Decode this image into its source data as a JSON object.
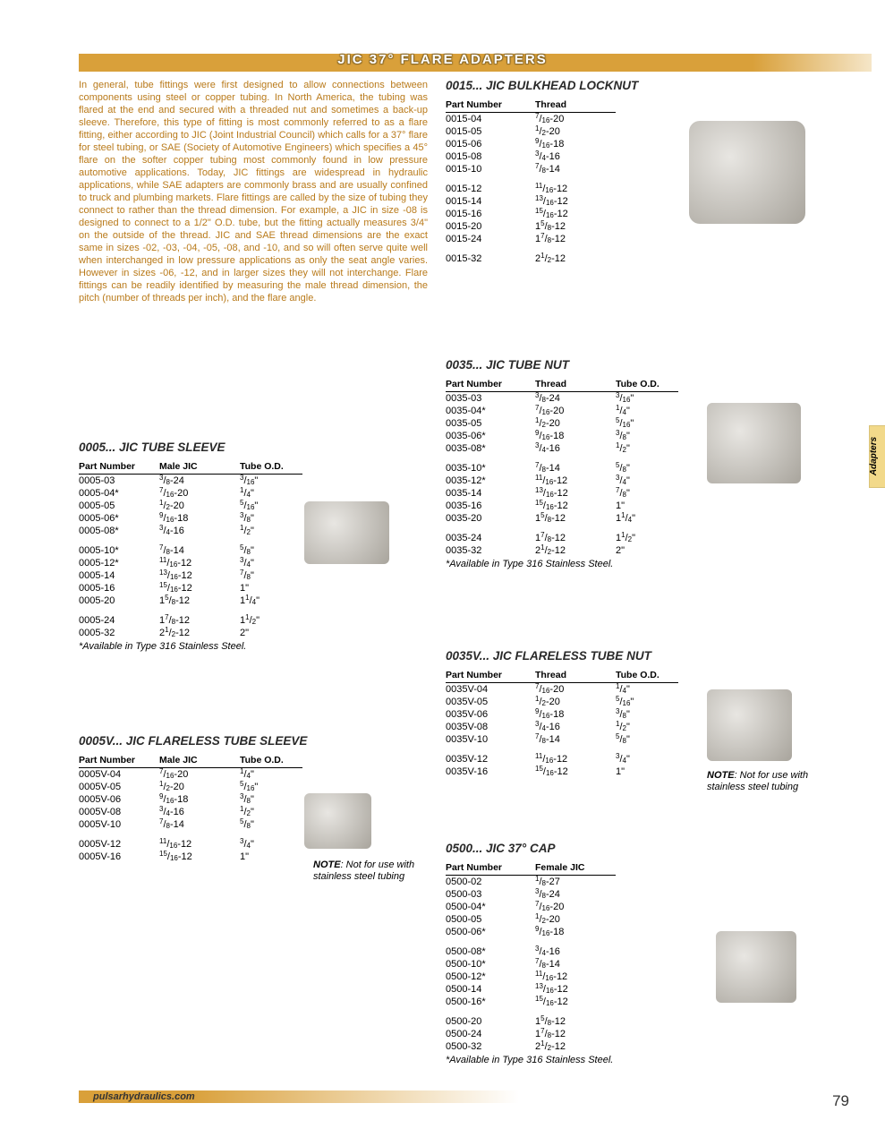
{
  "header": {
    "title": "JIC 37° FLARE ADAPTERS"
  },
  "sideTab": "Adapters",
  "intro": "In general, tube fittings were first designed to allow connections between components using steel or copper tubing. In North America, the tubing was flared at the end and secured with a threaded nut and sometimes a back-up sleeve. Therefore, this type of fitting is most commonly referred to as a flare fitting, either according to JIC (Joint Industrial Council) which calls for a 37° flare for steel tubing, or SAE (Society of Automotive Engineers) which specifies a 45° flare on the softer copper tubing most commonly found in low pressure automotive applications. Today, JIC fittings are widespread in hydraulic applications, while SAE adapters are commonly brass and are usually confined to truck and plumbing markets. Flare fittings are called by the size of tubing they connect to rather than the thread dimension. For example, a JIC in size -08 is designed to connect to a 1/2\" O.D. tube, but the fitting actually measures 3/4\" on the outside of the thread. JIC and SAE thread dimensions are the exact same in sizes -02, -03, -04, -05, -08, and -10, and so will often serve quite well when interchanged in low pressure applications as only the seat angle varies. However in sizes -06, -12, and in larger sizes they will not interchange. Flare fittings can be readily identified by measuring the male thread dimension, the pitch (number of threads per inch), and the flare angle.",
  "footnote_ss": "*Available in Type 316 Stainless Steel.",
  "note_stainless": "NOTE: Not for use with stainless steel tubing",
  "footer": {
    "url": "pulsarhydraulics.com",
    "page": "79"
  },
  "col": {
    "partnum": "Part Number",
    "malejic": "Male JIC",
    "thread": "Thread",
    "tubeod": "Tube O.D.",
    "femalejic": "Female JIC"
  },
  "sections": {
    "s0005": {
      "title": "0005...  JIC TUBE SLEEVE"
    },
    "s0005v": {
      "title": "0005V...  JIC FLARELESS TUBE SLEEVE"
    },
    "s0015": {
      "title": "0015...  JIC BULKHEAD LOCKNUT"
    },
    "s0035": {
      "title": "0035...  JIC TUBE NUT"
    },
    "s0035v": {
      "title": "0035V...  JIC FLARELESS TUBE NUT"
    },
    "s0500": {
      "title": "0500...  JIC 37° CAP"
    }
  },
  "t0005": [
    [
      "0005-03",
      "3/8-24",
      "3/16\""
    ],
    [
      "0005-04*",
      "7/16-20",
      "1/4\""
    ],
    [
      "0005-05",
      "1/2-20",
      "5/16\""
    ],
    [
      "0005-06*",
      "9/16-18",
      "3/8\""
    ],
    [
      "0005-08*",
      "3/4-16",
      "1/2\""
    ],
    [],
    [
      "0005-10*",
      "7/8-14",
      "5/8\""
    ],
    [
      "0005-12*",
      "11/16-12",
      "3/4\""
    ],
    [
      "0005-14",
      "13/16-12",
      "7/8\""
    ],
    [
      "0005-16",
      "15/16-12",
      "1\""
    ],
    [
      "0005-20",
      "15/8-12",
      "11/4\""
    ],
    [],
    [
      "0005-24",
      "17/8-12",
      "11/2\""
    ],
    [
      "0005-32",
      "21/2-12",
      "2\""
    ]
  ],
  "t0005v": [
    [
      "0005V-04",
      "7/16-20",
      "1/4\""
    ],
    [
      "0005V-05",
      "1/2-20",
      "5/16\""
    ],
    [
      "0005V-06",
      "9/16-18",
      "3/8\""
    ],
    [
      "0005V-08",
      "3/4-16",
      "1/2\""
    ],
    [
      "0005V-10",
      "7/8-14",
      "5/8\""
    ],
    [],
    [
      "0005V-12",
      "11/16-12",
      "3/4\""
    ],
    [
      "0005V-16",
      "15/16-12",
      "1\""
    ]
  ],
  "t0015": [
    [
      "0015-04",
      "7/16-20"
    ],
    [
      "0015-05",
      "1/2-20"
    ],
    [
      "0015-06",
      "9/16-18"
    ],
    [
      "0015-08",
      "3/4-16"
    ],
    [
      "0015-10",
      "7/8-14"
    ],
    [],
    [
      "0015-12",
      "11/16-12"
    ],
    [
      "0015-14",
      "13/16-12"
    ],
    [
      "0015-16",
      "15/16-12"
    ],
    [
      "0015-20",
      "15/8-12"
    ],
    [
      "0015-24",
      "17/8-12"
    ],
    [],
    [
      "0015-32",
      "21/2-12"
    ]
  ],
  "t0035": [
    [
      "0035-03",
      "3/8-24",
      "3/16\""
    ],
    [
      "0035-04*",
      "7/16-20",
      "1/4\""
    ],
    [
      "0035-05",
      "1/2-20",
      "5/16\""
    ],
    [
      "0035-06*",
      "9/16-18",
      "3/8\""
    ],
    [
      "0035-08*",
      "3/4-16",
      "1/2\""
    ],
    [],
    [
      "0035-10*",
      "7/8-14",
      "5/8\""
    ],
    [
      "0035-12*",
      "11/16-12",
      "3/4\""
    ],
    [
      "0035-14",
      "13/16-12",
      "7/8\""
    ],
    [
      "0035-16",
      "15/16-12",
      "1\""
    ],
    [
      "0035-20",
      "15/8-12",
      "11/4\""
    ],
    [],
    [
      "0035-24",
      "17/8-12",
      "11/2\""
    ],
    [
      "0035-32",
      "21/2-12",
      "2\""
    ]
  ],
  "t0035v": [
    [
      "0035V-04",
      "7/16-20",
      "1/4\""
    ],
    [
      "0035V-05",
      "1/2-20",
      "5/16\""
    ],
    [
      "0035V-06",
      "9/16-18",
      "3/8\""
    ],
    [
      "0035V-08",
      "3/4-16",
      "1/2\""
    ],
    [
      "0035V-10",
      "7/8-14",
      "5/8\""
    ],
    [],
    [
      "0035V-12",
      "11/16-12",
      "3/4\""
    ],
    [
      "0035V-16",
      "15/16-12",
      "1\""
    ]
  ],
  "t0500": [
    [
      "0500-02",
      "1/8-27"
    ],
    [
      "0500-03",
      "3/8-24"
    ],
    [
      "0500-04*",
      "7/16-20"
    ],
    [
      "0500-05",
      "1/2-20"
    ],
    [
      "0500-06*",
      "9/16-18"
    ],
    [],
    [
      "0500-08*",
      "3/4-16"
    ],
    [
      "0500-10*",
      "7/8-14"
    ],
    [
      "0500-12*",
      "11/16-12"
    ],
    [
      "0500-14",
      "13/16-12"
    ],
    [
      "0500-16*",
      "15/16-12"
    ],
    [],
    [
      "0500-20",
      "15/8-12"
    ],
    [
      "0500-24",
      "17/8-12"
    ],
    [
      "0500-32",
      "21/2-12"
    ]
  ]
}
